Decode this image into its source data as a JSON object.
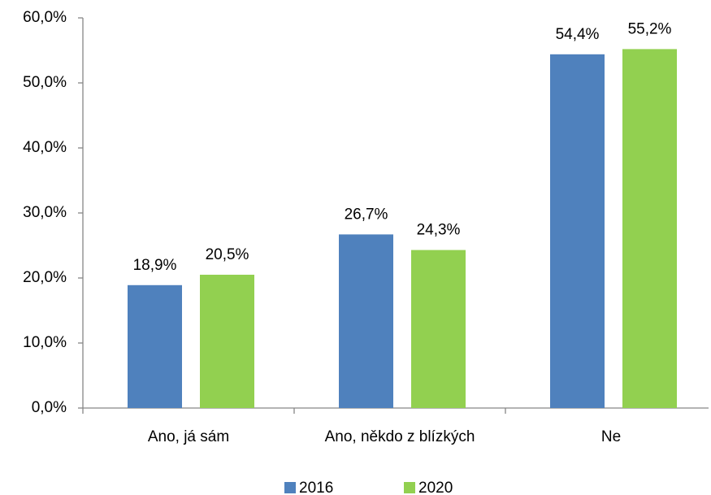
{
  "chart_data": {
    "type": "bar",
    "categories": [
      "Ano, já sám",
      "Ano, někdo z blízkých",
      "Ne"
    ],
    "series": [
      {
        "name": "2016",
        "color": "#4f81bd",
        "values": [
          18.9,
          26.7,
          54.4
        ],
        "value_labels": [
          "18,9%",
          "26,7%",
          "54,4%"
        ]
      },
      {
        "name": "2020",
        "color": "#92d050",
        "values": [
          20.5,
          24.3,
          55.2
        ],
        "value_labels": [
          "20,5%",
          "24,3%",
          "55,2%"
        ]
      }
    ],
    "ylim": [
      0,
      60
    ],
    "yticks": [
      {
        "value": 0,
        "label": "0,0%"
      },
      {
        "value": 10,
        "label": "10,0%"
      },
      {
        "value": 20,
        "label": "20,0%"
      },
      {
        "value": 30,
        "label": "30,0%"
      },
      {
        "value": 40,
        "label": "40,0%"
      },
      {
        "value": 50,
        "label": "50,0%"
      },
      {
        "value": 60,
        "label": "60,0%"
      }
    ],
    "grid": false,
    "legend": "bottom"
  }
}
